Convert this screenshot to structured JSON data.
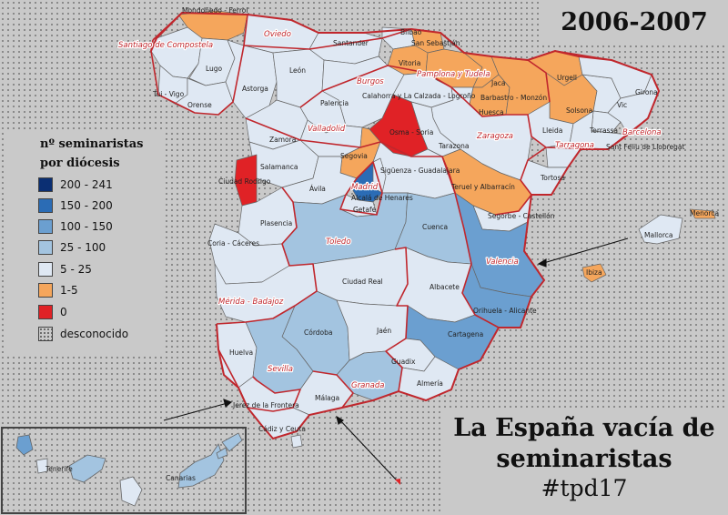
{
  "year": "2006-2007",
  "title": {
    "line1": "La España vacía de",
    "line2": "seminaristas",
    "hashtag": "#tpd17"
  },
  "legend": {
    "title_line1": "nº seminaristas",
    "title_line2": "por diócesis",
    "items": [
      {
        "label": "200 - 241",
        "color": "#0b2f73"
      },
      {
        "label": "150 - 200",
        "color": "#2b6cb5"
      },
      {
        "label": "100 - 150",
        "color": "#6b9fd0"
      },
      {
        "label": "25 - 100",
        "color": "#a3c4e0"
      },
      {
        "label": "5 - 25",
        "color": "#dfe8f3"
      },
      {
        "label": "1-5",
        "color": "#f5a65c"
      },
      {
        "label": "0",
        "color": "#e02226"
      },
      {
        "label": "desconocido",
        "color": "#c9c9c9"
      }
    ]
  },
  "metropolitan_labels": [
    "Santiago de Compostela",
    "Oviedo",
    "Burgos",
    "Pamplona y Tudela",
    "Zaragoza",
    "Valladolid",
    "Madrid",
    "Toledo",
    "Valencia",
    "Mérida - Badajoz",
    "Sevilla",
    "Granada",
    "Tarragona",
    "Barcelona"
  ],
  "diocese_labels": [
    "Mondoñedo - Ferrol",
    "Lugo",
    "Tui - Vigo",
    "Orense",
    "Astorga",
    "León",
    "Santander",
    "Bilbao",
    "San Sebastián",
    "Vitoria",
    "Jaca",
    "Urgell",
    "Girona",
    "Vic",
    "Solsona",
    "Lleida",
    "Terrassa",
    "Sant Feliu de Llobregat",
    "Barbastro - Monzón",
    "Huesca",
    "Palencia",
    "Calahorra y La Calzada - Logroño",
    "Osma - Soria",
    "Tarazona",
    "Zamora",
    "Salamanca",
    "Ciudad Rodrigo",
    "Segovia",
    "Ávila",
    "Sigüenza - Guadalajara",
    "Alcalá de Henares",
    "Getafe",
    "Teruel y Albarracín",
    "Tortosa",
    "Segorbe - Castellón",
    "Menorca",
    "Mallorca",
    "Ibiza",
    "Plasencia",
    "Coria - Cáceres",
    "Cuenca",
    "Ciudad Real",
    "Albacete",
    "Orihuela - Alicante",
    "Córdoba",
    "Jaén",
    "Huelva",
    "Cartagena",
    "Guadix",
    "Almería",
    "Málaga",
    "Jerez de la Frontera",
    "Cádiz y Ceuta",
    "Tenerife",
    "Canarias"
  ]
}
